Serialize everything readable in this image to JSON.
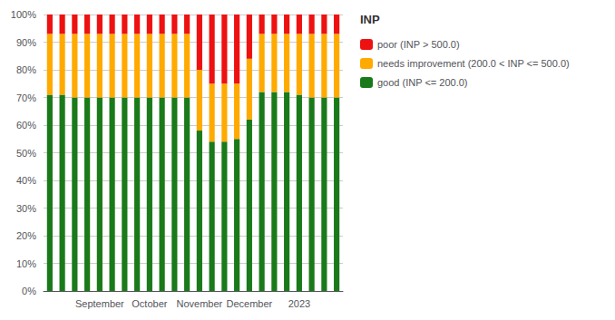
{
  "chart_data": {
    "type": "bar",
    "title": "INP",
    "categories": [
      null,
      null,
      null,
      null,
      "September",
      null,
      null,
      null,
      "October",
      null,
      null,
      null,
      "November",
      null,
      null,
      null,
      "December",
      null,
      null,
      null,
      "2023",
      null,
      null,
      null
    ],
    "series": [
      {
        "name": "good (INP <= 200.0)",
        "color": "#1a7a1a",
        "values": [
          0.71,
          0.71,
          0.7,
          0.7,
          0.7,
          0.7,
          0.7,
          0.7,
          0.7,
          0.7,
          0.7,
          0.7,
          0.58,
          0.54,
          0.54,
          0.55,
          0.62,
          0.72,
          0.72,
          0.72,
          0.71,
          0.7,
          0.7,
          0.7
        ]
      },
      {
        "name": "needs improvement (200.0 < INP <= 500.0)",
        "color": "#ffaa00",
        "values": [
          0.22,
          0.22,
          0.23,
          0.23,
          0.23,
          0.23,
          0.23,
          0.23,
          0.23,
          0.23,
          0.23,
          0.23,
          0.22,
          0.21,
          0.21,
          0.2,
          0.22,
          0.21,
          0.21,
          0.21,
          0.22,
          0.23,
          0.23,
          0.23
        ]
      },
      {
        "name": "poor (INP > 500.0)",
        "color": "#ee1111",
        "values": [
          0.07,
          0.07,
          0.07,
          0.07,
          0.07,
          0.07,
          0.07,
          0.07,
          0.07,
          0.07,
          0.07,
          0.07,
          0.2,
          0.25,
          0.25,
          0.25,
          0.16,
          0.07,
          0.07,
          0.07,
          0.07,
          0.07,
          0.07,
          0.07
        ]
      }
    ],
    "stacked": true,
    "ylim": [
      0,
      1.0
    ],
    "yticks": [
      {
        "value": 0,
        "label": "0%"
      },
      {
        "value": 0.1,
        "label": "10%"
      },
      {
        "value": 0.2,
        "label": "20%"
      },
      {
        "value": 0.3,
        "label": "30%"
      },
      {
        "value": 0.4,
        "label": "40%"
      },
      {
        "value": 0.5,
        "label": "50%"
      },
      {
        "value": 0.6,
        "label": "60%"
      },
      {
        "value": 0.7,
        "label": "70%"
      },
      {
        "value": 0.8,
        "label": "80%"
      },
      {
        "value": 0.9,
        "label": "90%"
      },
      {
        "value": 1.0,
        "label": "100%"
      }
    ],
    "grid": true,
    "legend": "right"
  }
}
